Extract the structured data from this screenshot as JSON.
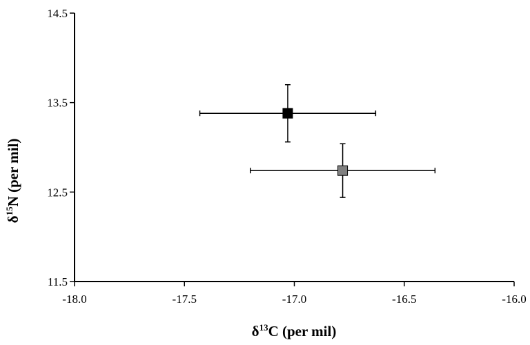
{
  "chart_data": {
    "type": "scatter",
    "title": "",
    "xlabel": {
      "prefix": "δ",
      "sup": "13",
      "suffix": "C (per mil)"
    },
    "ylabel": {
      "prefix": "δ",
      "sup": "15",
      "suffix": "N (per mil)"
    },
    "xlim": [
      -18.0,
      -16.0
    ],
    "ylim": [
      11.5,
      14.5
    ],
    "x_ticks": [
      -18.0,
      -17.5,
      -17.0,
      -16.5,
      -16.0
    ],
    "x_tick_labels": [
      "-18.0",
      "-17.5",
      "-17.0",
      "-16.5",
      "-16.0"
    ],
    "y_ticks": [
      11.5,
      12.5,
      13.5,
      14.5
    ],
    "y_tick_labels": [
      "11.5",
      "12.5",
      "13.5",
      "14.5"
    ],
    "grid": false,
    "series": [
      {
        "color": "#000000",
        "marker": "square",
        "points": [
          {
            "x": -17.03,
            "y": 13.38,
            "x_err": 0.4,
            "y_err": 0.32
          }
        ]
      },
      {
        "color": "#808080",
        "marker": "square",
        "points": [
          {
            "x": -16.78,
            "y": 12.74,
            "x_err": 0.42,
            "y_err": 0.3
          }
        ]
      }
    ]
  }
}
